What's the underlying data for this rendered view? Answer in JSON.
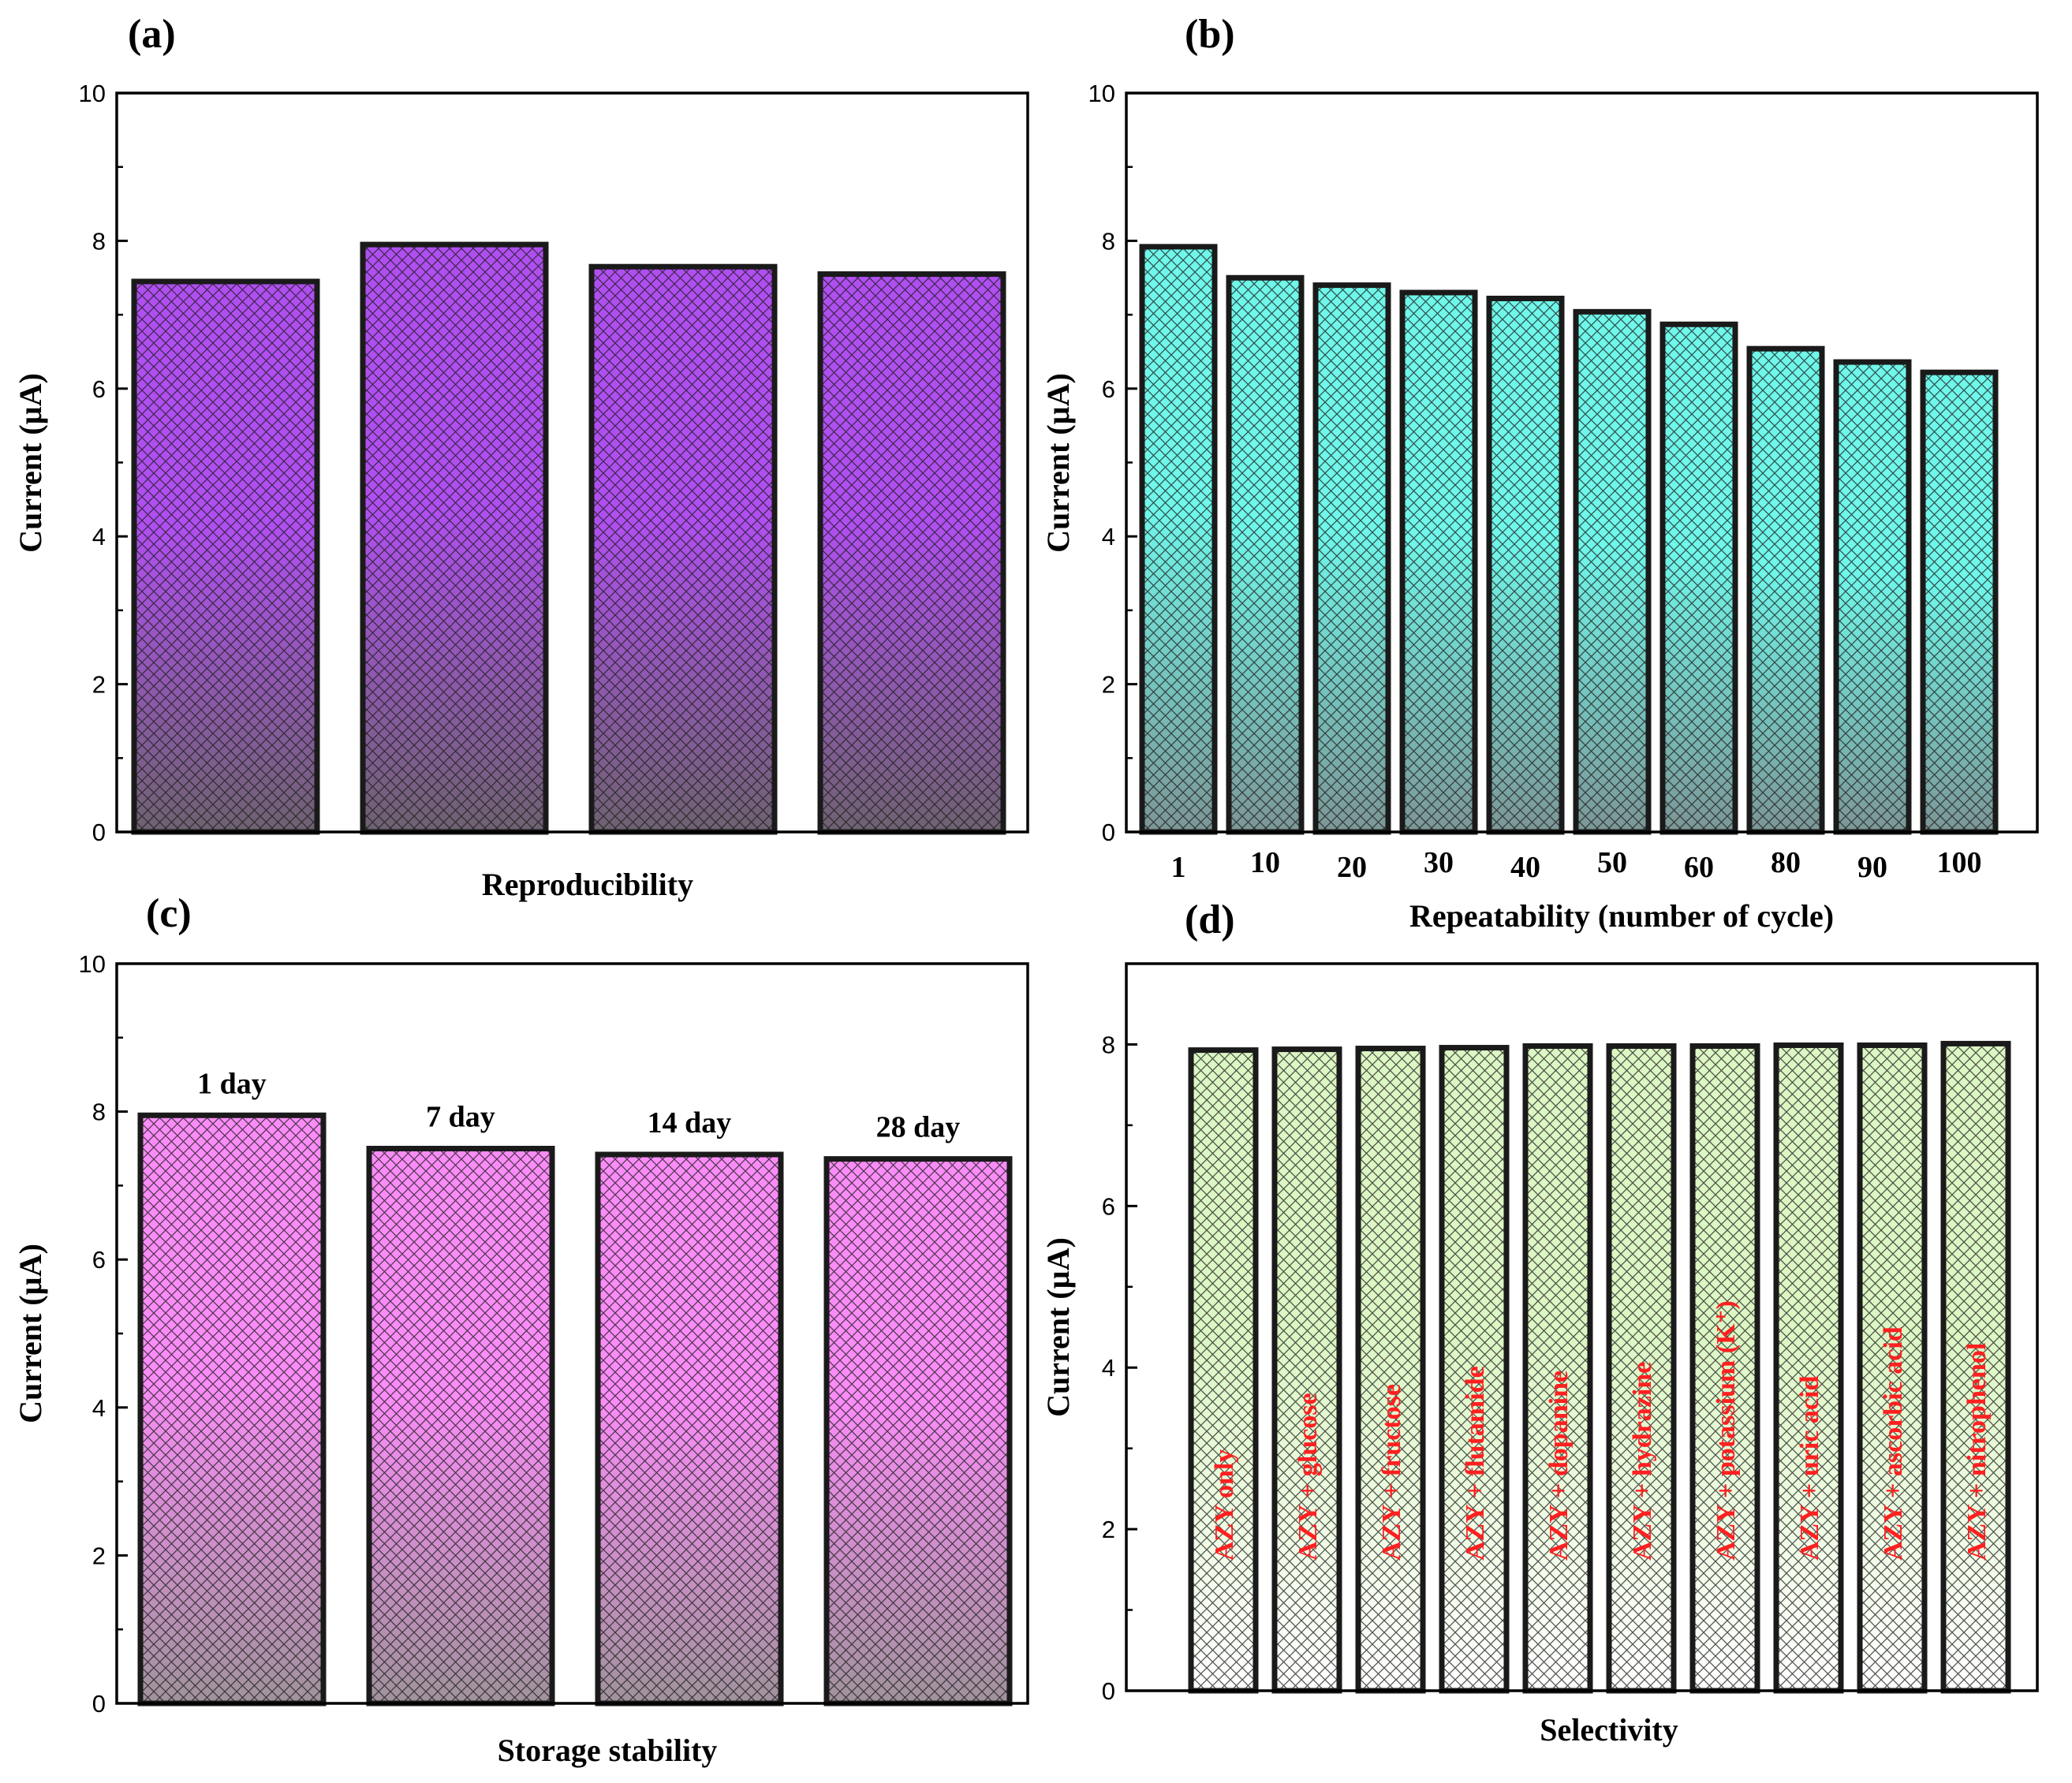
{
  "chart_data": [
    {
      "id": "a",
      "panel_label": "(a)",
      "type": "bar",
      "categories": [
        "",
        "",
        "",
        ""
      ],
      "values": [
        7.45,
        7.95,
        7.65,
        7.55
      ],
      "xlabel": "Reproducibility",
      "ylabel": "Current (µA)",
      "ylim": [
        0,
        10
      ],
      "yticks": [
        0,
        2,
        4,
        6,
        8,
        10
      ],
      "color_top": "#b04ff0",
      "color_bottom": "#6e6270",
      "annotations": []
    },
    {
      "id": "b",
      "panel_label": "(b)",
      "type": "bar",
      "categories": [
        "1",
        "10",
        "20",
        "30",
        "40",
        "50",
        "60",
        "80",
        "90",
        "100"
      ],
      "values": [
        7.92,
        7.5,
        7.4,
        7.3,
        7.22,
        7.04,
        6.87,
        6.54,
        6.36,
        6.22
      ],
      "xlabel": "Repeatability (number of cycle)",
      "ylabel": "Current (µA)",
      "ylim": [
        0,
        10
      ],
      "yticks": [
        0,
        2,
        4,
        6,
        8,
        10
      ],
      "color_top": "#6ff7ea",
      "color_bottom": "#7c9696",
      "annotations": []
    },
    {
      "id": "c",
      "panel_label": "(c)",
      "type": "bar",
      "categories": [
        "",
        "",
        "",
        ""
      ],
      "values": [
        7.95,
        7.5,
        7.42,
        7.36
      ],
      "xlabel": "Storage stability",
      "ylabel": "Current (µA)",
      "ylim": [
        0,
        10
      ],
      "yticks": [
        0,
        2,
        4,
        6,
        8,
        10
      ],
      "color_top": "#fa8cf7",
      "color_bottom": "#a0929c",
      "annotations": [
        "1 day",
        "7 day",
        "14 day",
        "28 day"
      ]
    },
    {
      "id": "d",
      "panel_label": "(d)",
      "type": "bar",
      "categories": [
        "",
        "",
        "",
        "",
        "",
        "",
        "",
        "",
        "",
        ""
      ],
      "values": [
        7.93,
        7.94,
        7.95,
        7.96,
        7.98,
        7.98,
        7.98,
        7.99,
        7.99,
        8.01
      ],
      "xlabel": "Selectivity",
      "ylabel": "Current (µA)",
      "ylim": [
        0,
        9
      ],
      "yticks": [
        0,
        2,
        4,
        6,
        8
      ],
      "color_top": "#dcf6c4",
      "color_bottom": "#ffffff",
      "annotations": [],
      "bar_labels": [
        "AZY only",
        "AZY + glucose",
        "AZY + fructose",
        "AZY + flutamide",
        "AZY + dopanine",
        "AZY + hydrazine",
        "AZY + potassium (K⁺)",
        "AZY + uric acid",
        "AZY + ascorbic acid",
        "AZY + nitrophenol"
      ]
    }
  ]
}
